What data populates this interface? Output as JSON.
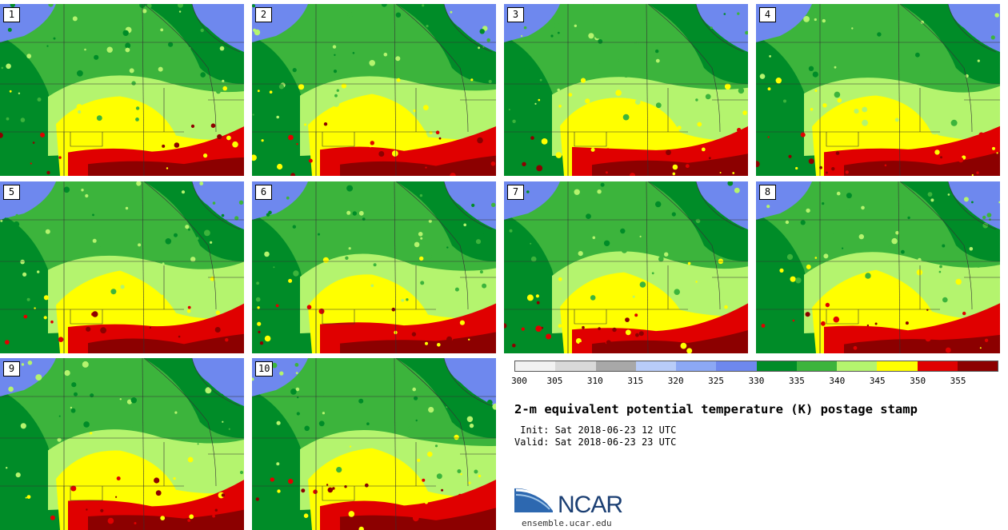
{
  "panels": [
    "1",
    "2",
    "3",
    "4",
    "5",
    "6",
    "7",
    "8",
    "9",
    "10"
  ],
  "colorbar": {
    "ticks": [
      "300",
      "305",
      "310",
      "315",
      "320",
      "325",
      "330",
      "335",
      "340",
      "345",
      "350",
      "355"
    ],
    "colors": [
      "#f2f2f2",
      "#d9d9d9",
      "#a8a8a8",
      "#b8ccf8",
      "#8ca8f4",
      "#6e88ee",
      "#008c28",
      "#3cb43c",
      "#b4f46e",
      "#ffff00",
      "#e00000",
      "#8c0000"
    ]
  },
  "map_colors": {
    "cool": "#6e88ee",
    "dark_green": "#008c28",
    "green": "#3cb43c",
    "light_green": "#b4f46e",
    "yellow": "#ffff00",
    "red": "#e00000",
    "dark_red": "#8c0000",
    "border": "#333333"
  },
  "title": "2-m equivalent potential temperature (K) postage stamp",
  "init": " Init: Sat 2018-06-23 12 UTC",
  "valid": "Valid: Sat 2018-06-23 23 UTC",
  "logo": {
    "text": "NCAR",
    "url": "ensemble.ucar.edu"
  }
}
